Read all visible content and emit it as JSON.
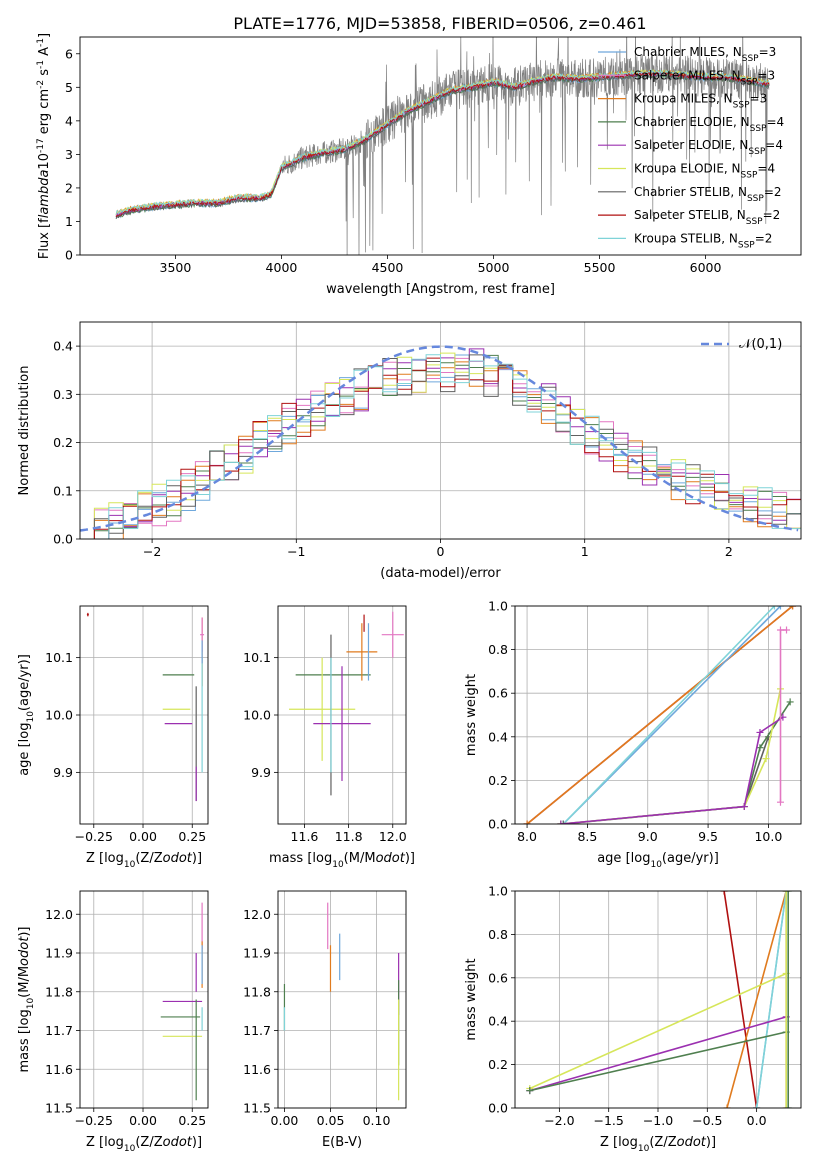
{
  "figure": {
    "title": "PLATE=1776, MJD=53858, FIBERID=0506, z=0.461"
  },
  "colors": {
    "chabrier_miles": "#6fa8dc",
    "salpeter_miles": "#e377c2",
    "kroupa_miles": "#e07b1f",
    "chabrier_elodie": "#4f7f4f",
    "salpeter_elodie": "#9b30b0",
    "kroupa_elodie": "#d6e65a",
    "chabrier_stelib": "#606060",
    "salpeter_stelib": "#b01010",
    "kroupa_stelib": "#7fd3d8",
    "data": "#808080",
    "gauss": "#6688dd"
  },
  "chart_data": [
    {
      "id": "spectrum",
      "type": "line",
      "xlabel": "wavelength [Angstrom, rest frame]",
      "ylabel": "Flux [f$_\\lambda$10$^{-17}$ erg cm$^{-2}$ s$^{-1}$ A$^{-1}$]",
      "xlim": [
        3050,
        6450
      ],
      "ylim": [
        0,
        6.5
      ],
      "xticks": [
        3500,
        4000,
        4500,
        5000,
        5500,
        6000
      ],
      "yticks": [
        0,
        1,
        2,
        3,
        4,
        5,
        6
      ],
      "grid": false,
      "legend_position": "top-right",
      "legend": [
        {
          "key": "chabrier_miles",
          "label": "Chabrier MILES, N",
          "sub": "SSP",
          "tail": "=3"
        },
        {
          "key": "salpeter_miles",
          "label": "Salpeter MILES, N",
          "sub": "SSP",
          "tail": "=3"
        },
        {
          "key": "kroupa_miles",
          "label": "Kroupa MILES, N",
          "sub": "SSP",
          "tail": "=3"
        },
        {
          "key": "chabrier_elodie",
          "label": "Chabrier ELODIE, N",
          "sub": "SSP",
          "tail": "=4"
        },
        {
          "key": "salpeter_elodie",
          "label": "Salpeter ELODIE, N",
          "sub": "SSP",
          "tail": "=4"
        },
        {
          "key": "kroupa_elodie",
          "label": "Kroupa ELODIE, N",
          "sub": "SSP",
          "tail": "=4"
        },
        {
          "key": "chabrier_stelib",
          "label": "Chabrier STELIB, N",
          "sub": "SSP",
          "tail": "=2"
        },
        {
          "key": "salpeter_stelib",
          "label": "Salpeter STELIB, N",
          "sub": "SSP",
          "tail": "=2"
        },
        {
          "key": "kroupa_stelib",
          "label": "Kroupa STELIB, N",
          "sub": "SSP",
          "tail": "=2"
        }
      ],
      "continuum": {
        "wavelength": [
          3220,
          3300,
          3400,
          3500,
          3600,
          3700,
          3800,
          3900,
          3950,
          4000,
          4100,
          4200,
          4300,
          4400,
          4500,
          4600,
          4700,
          4800,
          4900,
          5000,
          5100,
          5200,
          5300,
          5400,
          5500,
          5600,
          5700,
          5800,
          5900,
          6000,
          6100,
          6200,
          6300
        ],
        "flux": [
          1.2,
          1.35,
          1.45,
          1.5,
          1.55,
          1.55,
          1.7,
          1.7,
          1.8,
          2.6,
          2.9,
          3.05,
          3.15,
          3.45,
          3.9,
          4.3,
          4.6,
          4.9,
          5.0,
          5.15,
          5.0,
          5.2,
          5.3,
          5.25,
          5.3,
          5.35,
          5.4,
          5.4,
          5.35,
          5.3,
          5.3,
          5.2,
          5.1
        ]
      },
      "data_range": [
        3220,
        6300
      ],
      "data_noise_max": 1.6
    },
    {
      "id": "residuals",
      "type": "histogram",
      "xlabel": "(data-model)/error",
      "ylabel": "Normed distribution",
      "xlim": [
        -2.5,
        2.5
      ],
      "ylim": [
        0,
        0.45
      ],
      "xticks": [
        -2,
        -1,
        0,
        1,
        2
      ],
      "yticks": [
        0.0,
        0.1,
        0.2,
        0.3,
        0.4
      ],
      "grid": true,
      "legend_position": "top-right",
      "legend_label": "$\\mathcal{N}(0,1)$",
      "bin_width": 0.1,
      "envelope": [
        0.02,
        0.03,
        0.04,
        0.055,
        0.06,
        0.07,
        0.08,
        0.1,
        0.12,
        0.14,
        0.16,
        0.18,
        0.2,
        0.22,
        0.24,
        0.25,
        0.27,
        0.28,
        0.3,
        0.31,
        0.32,
        0.33,
        0.34,
        0.34,
        0.35,
        0.35,
        0.35,
        0.35,
        0.34,
        0.33,
        0.32,
        0.3,
        0.28,
        0.26,
        0.24,
        0.22,
        0.2,
        0.18,
        0.16,
        0.15,
        0.14,
        0.12,
        0.11,
        0.1,
        0.09,
        0.08,
        0.07,
        0.065,
        0.06,
        0.05
      ]
    },
    {
      "id": "age_vs_Z",
      "type": "errorbar",
      "xlabel": "Z [log$_{10}$(Z/Z$_\\odot$)]",
      "ylabel": "age  [log$_{10}$(age/yr)]",
      "xlim": [
        -0.32,
        0.33
      ],
      "ylim": [
        9.81,
        10.19
      ],
      "xticks": [
        -0.25,
        0.0,
        0.25
      ],
      "yticks": [
        9.9,
        10.0,
        10.1
      ],
      "grid": true,
      "points": [
        {
          "c": "salpeter_stelib",
          "x": -0.28,
          "y": 10.175,
          "xe": 0.0,
          "ye": 0.003
        },
        {
          "c": "chabrier_elodie",
          "x": 0.18,
          "y": 10.07,
          "xe": 0.08,
          "ye": 0.0
        },
        {
          "c": "kroupa_elodie",
          "x": 0.17,
          "y": 10.01,
          "xe": 0.07,
          "ye": 0.0
        },
        {
          "c": "salpeter_elodie",
          "x": 0.18,
          "y": 9.985,
          "xe": 0.07,
          "ye": 0.0
        },
        {
          "c": "chabrier_stelib",
          "x": 0.27,
          "y": 9.95,
          "xe": 0.0,
          "ye": 0.1
        },
        {
          "c": "salpeter_elodie",
          "x": 0.27,
          "y": 9.88,
          "xe": 0.0,
          "ye": 0.03
        },
        {
          "c": "kroupa_miles",
          "x": 0.3,
          "y": 10.11,
          "xe": 0.0,
          "ye": 0.06
        },
        {
          "c": "kroupa_stelib",
          "x": 0.3,
          "y": 10.0,
          "xe": 0.0,
          "ye": 0.1
        },
        {
          "c": "salpeter_miles",
          "x": 0.3,
          "y": 10.14,
          "xe": 0.01,
          "ye": 0.03
        },
        {
          "c": "chabrier_miles",
          "x": 0.3,
          "y": 10.11,
          "xe": 0.0,
          "ye": 0.02
        }
      ]
    },
    {
      "id": "age_vs_mass",
      "type": "errorbar",
      "xlabel": "mass [log$_{10}$(M/M$_\\odot$)]",
      "ylabel": "",
      "xlim": [
        11.48,
        12.06
      ],
      "ylim": [
        9.81,
        10.19
      ],
      "xticks": [
        11.6,
        11.8,
        12.0
      ],
      "yticks": [
        9.9,
        10.0,
        10.1
      ],
      "grid": true,
      "points": [
        {
          "c": "chabrier_elodie",
          "x": 11.73,
          "y": 10.07,
          "xe": 0.17,
          "ye": 0.0
        },
        {
          "c": "kroupa_elodie",
          "x": 11.68,
          "y": 10.01,
          "xe": 0.15,
          "ye": 0.09
        },
        {
          "c": "salpeter_elodie",
          "x": 11.77,
          "y": 9.985,
          "xe": 0.13,
          "ye": 0.1
        },
        {
          "c": "chabrier_stelib",
          "x": 11.72,
          "y": 10.0,
          "xe": 0.0,
          "ye": 0.14
        },
        {
          "c": "kroupa_stelib",
          "x": 11.72,
          "y": 10.0,
          "xe": 0.0,
          "ye": 0.1
        },
        {
          "c": "kroupa_miles",
          "x": 11.86,
          "y": 10.11,
          "xe": 0.07,
          "ye": 0.05
        },
        {
          "c": "chabrier_miles",
          "x": 11.89,
          "y": 10.11,
          "xe": 0.0,
          "ye": 0.05
        },
        {
          "c": "salpeter_miles",
          "x": 12.0,
          "y": 10.14,
          "xe": 0.05,
          "ye": 0.04
        },
        {
          "c": "salpeter_stelib",
          "x": 11.87,
          "y": 10.16,
          "xe": 0.0,
          "ye": 0.015
        }
      ]
    },
    {
      "id": "mass_weight_vs_age",
      "type": "line",
      "xlabel": "age  [log$_{10}$(age/yr)]",
      "ylabel": "mass weight",
      "xlim": [
        7.9,
        10.27
      ],
      "ylim": [
        0,
        1.0
      ],
      "xticks": [
        8.0,
        8.5,
        9.0,
        9.5,
        10.0
      ],
      "yticks": [
        0.0,
        0.2,
        0.4,
        0.6,
        0.8,
        1.0
      ],
      "grid": true,
      "series": [
        {
          "c": "salpeter_stelib",
          "x": [
            8.0,
            10.2
          ],
          "y": [
            0.0,
            1.0
          ]
        },
        {
          "c": "kroupa_miles",
          "x": [
            8.0,
            10.2
          ],
          "y": [
            0.0,
            1.0
          ]
        },
        {
          "c": "chabrier_miles",
          "x": [
            8.3,
            10.1
          ],
          "y": [
            0.0,
            1.0
          ]
        },
        {
          "c": "kroupa_stelib",
          "x": [
            8.3,
            10.05
          ],
          "y": [
            0.0,
            1.0
          ]
        },
        {
          "c": "chabrier_stelib",
          "x": [
            8.3,
            9.8,
            10.0
          ],
          "y": [
            0.0,
            0.08,
            0.4
          ]
        },
        {
          "c": "chabrier_elodie",
          "x": [
            8.28,
            9.8,
            9.93,
            10.18
          ],
          "y": [
            0.0,
            0.08,
            0.35,
            0.56
          ]
        },
        {
          "c": "kroupa_elodie",
          "x": [
            8.28,
            9.8,
            9.98,
            10.1
          ],
          "y": [
            0.0,
            0.08,
            0.3,
            0.62
          ]
        },
        {
          "c": "salpeter_elodie",
          "x": [
            8.28,
            9.8,
            9.93,
            10.12
          ],
          "y": [
            0.0,
            0.08,
            0.42,
            0.49
          ]
        },
        {
          "c": "salpeter_miles",
          "x": [
            10.1,
            10.1,
            10.15
          ],
          "y": [
            0.1,
            0.89,
            0.89
          ]
        }
      ]
    },
    {
      "id": "mass_vs_Z",
      "type": "errorbar",
      "xlabel": "Z [log$_{10}$(Z/Z$_\\odot$)]",
      "ylabel": "mass [log$_{10}$(M/M$_\\odot$)]",
      "xlim": [
        -0.32,
        0.33
      ],
      "ylim": [
        11.5,
        12.06
      ],
      "xticks": [
        -0.25,
        0.0,
        0.25
      ],
      "yticks": [
        11.5,
        11.6,
        11.7,
        11.8,
        11.9,
        12.0
      ],
      "grid": true,
      "points": [
        {
          "c": "salpeter_elodie",
          "x": 0.2,
          "y": 11.775,
          "xe": 0.1,
          "ye": 0.0
        },
        {
          "c": "chabrier_elodie",
          "x": 0.19,
          "y": 11.735,
          "xe": 0.1,
          "ye": 0.0
        },
        {
          "c": "kroupa_elodie",
          "x": 0.2,
          "y": 11.685,
          "xe": 0.1,
          "ye": 0.0
        },
        {
          "c": "chabrier_elodie",
          "x": 0.27,
          "y": 11.65,
          "xe": 0.0,
          "ye": 0.13
        },
        {
          "c": "salpeter_elodie",
          "x": 0.27,
          "y": 11.85,
          "xe": 0.0,
          "ye": 0.05
        },
        {
          "c": "salpeter_miles",
          "x": 0.3,
          "y": 11.97,
          "xe": 0.0,
          "ye": 0.06
        },
        {
          "c": "kroupa_miles",
          "x": 0.3,
          "y": 11.87,
          "xe": 0.0,
          "ye": 0.06
        },
        {
          "c": "chabrier_miles",
          "x": 0.3,
          "y": 11.87,
          "xe": 0.0,
          "ye": 0.05
        },
        {
          "c": "kroupa_stelib",
          "x": 0.3,
          "y": 11.73,
          "xe": 0.0,
          "ye": 0.03
        }
      ]
    },
    {
      "id": "mass_vs_EBV",
      "type": "errorbar",
      "xlabel": "E(B-V)",
      "ylabel": "",
      "xlim": [
        -0.007,
        0.132
      ],
      "ylim": [
        11.5,
        12.06
      ],
      "xticks": [
        0.0,
        0.05,
        0.1
      ],
      "yticks": [
        11.5,
        11.6,
        11.7,
        11.8,
        11.9,
        12.0
      ],
      "grid": true,
      "points": [
        {
          "c": "chabrier_elodie",
          "x": 0.0,
          "y": 11.76,
          "xe": 0.0,
          "ye": 0.06
        },
        {
          "c": "kroupa_stelib",
          "x": 0.0,
          "y": 11.73,
          "xe": 0.0,
          "ye": 0.03
        },
        {
          "c": "salpeter_miles",
          "x": 0.047,
          "y": 11.97,
          "xe": 0.0,
          "ye": 0.06
        },
        {
          "c": "kroupa_miles",
          "x": 0.05,
          "y": 11.86,
          "xe": 0.0,
          "ye": 0.06
        },
        {
          "c": "chabrier_miles",
          "x": 0.06,
          "y": 11.89,
          "xe": 0.0,
          "ye": 0.06
        },
        {
          "c": "salpeter_elodie",
          "x": 0.124,
          "y": 11.82,
          "xe": 0.0,
          "ye": 0.08
        },
        {
          "c": "chabrier_elodie",
          "x": 0.124,
          "y": 11.72,
          "xe": 0.0,
          "ye": 0.11
        },
        {
          "c": "kroupa_elodie",
          "x": 0.124,
          "y": 11.65,
          "xe": 0.0,
          "ye": 0.13
        }
      ]
    },
    {
      "id": "mass_weight_vs_Z",
      "type": "line",
      "xlabel": "Z [log$_{10}$(Z/Z$_\\odot$)]",
      "ylabel": "mass weight",
      "xlim": [
        -2.45,
        0.45
      ],
      "ylim": [
        0,
        1.0
      ],
      "xticks": [
        -2.0,
        -1.5,
        -1.0,
        -0.5,
        0.0
      ],
      "yticks": [
        0.0,
        0.2,
        0.4,
        0.6,
        0.8,
        1.0
      ],
      "grid": true,
      "series": [
        {
          "c": "salpeter_stelib",
          "x": [
            -0.33,
            0.0
          ],
          "y": [
            1.0,
            0.0
          ]
        },
        {
          "c": "kroupa_miles",
          "x": [
            -0.3,
            0.3
          ],
          "y": [
            0.0,
            1.0
          ]
        },
        {
          "c": "chabrier_miles",
          "x": [
            0.0,
            0.3
          ],
          "y": [
            0.0,
            1.0
          ]
        },
        {
          "c": "kroupa_stelib",
          "x": [
            0.0,
            0.3
          ],
          "y": [
            0.0,
            1.0
          ]
        },
        {
          "c": "kroupa_elodie",
          "x": [
            -2.3,
            0.3
          ],
          "y": [
            0.09,
            0.62
          ]
        },
        {
          "c": "salpeter_elodie",
          "x": [
            -2.3,
            0.3
          ],
          "y": [
            0.08,
            0.42
          ]
        },
        {
          "c": "chabrier_elodie",
          "x": [
            -2.3,
            0.3
          ],
          "y": [
            0.08,
            0.35
          ]
        },
        {
          "c": "salpeter_miles",
          "x": [
            0.3,
            0.3
          ],
          "y": [
            0.0,
            1.0
          ]
        },
        {
          "c": "kroupa_elodie",
          "x": [
            0.3,
            0.3
          ],
          "y": [
            0.0,
            1.0
          ]
        },
        {
          "c": "chabrier_elodie",
          "x": [
            0.32,
            0.32
          ],
          "y": [
            0.0,
            1.0
          ]
        }
      ]
    }
  ]
}
